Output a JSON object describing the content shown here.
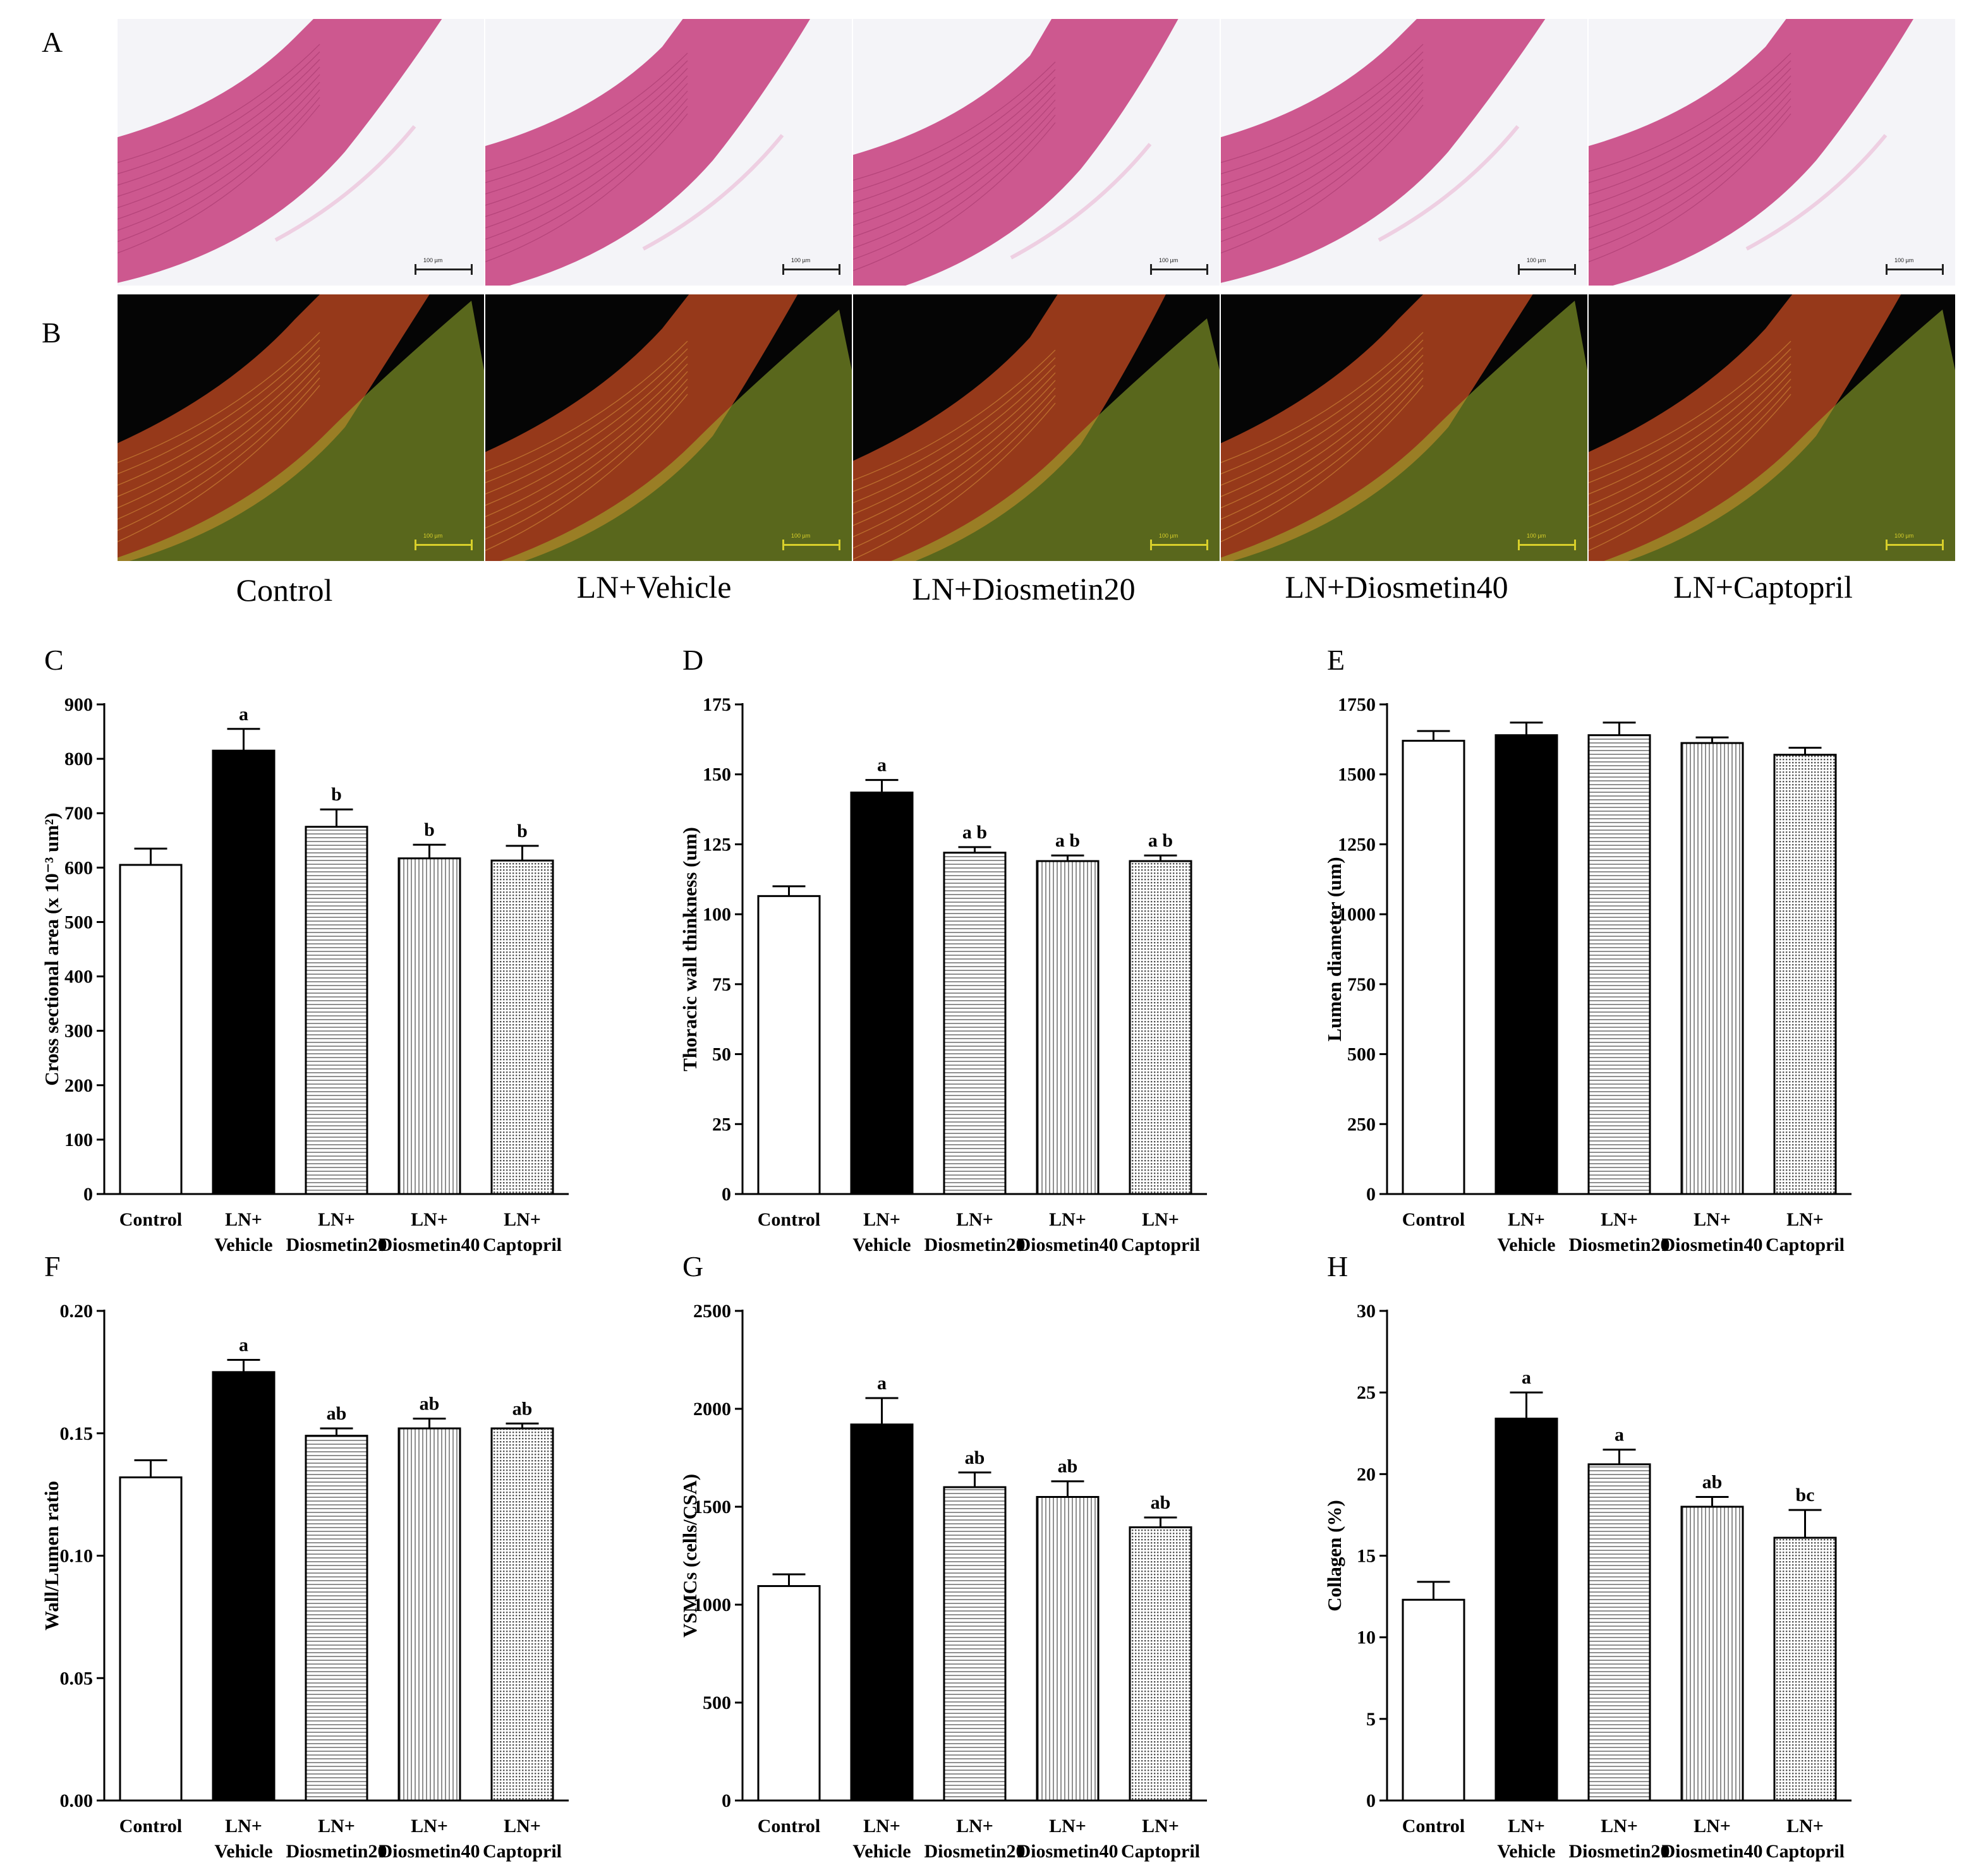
{
  "figure": {
    "panel_labels": [
      "A",
      "B"
    ],
    "groups": [
      "Control",
      "LN+Vehicle",
      "LN+Diosmetin20",
      "LN+Diosmetin40",
      "LN+Captopril"
    ],
    "he_scalebar_text": [
      "100 µm",
      "100 µm",
      "100 µm",
      "100 µm",
      "100 µm"
    ],
    "sr_scalebar_text": [
      "100 µm",
      "100 µm",
      "100 µm",
      "100 µm",
      "100 µm"
    ]
  },
  "colors": {
    "he_background": "#f4f4f8",
    "he_tissue": "#c94a86",
    "sr_background": "#050505",
    "sr_media": "#b0431f",
    "sr_adventitia": "#9fb830"
  },
  "chart_data": [
    {
      "panel": "C",
      "type": "bar",
      "categories": [
        "Control",
        "LN+\nVehicle",
        "LN+\nDiosmetin20",
        "LN+\nDiosmetin40",
        "LN+\nCaptopril"
      ],
      "values": [
        605,
        815,
        675,
        617,
        613
      ],
      "errors": [
        30,
        40,
        32,
        25,
        27
      ],
      "annotations": [
        "",
        "a",
        "b",
        "b",
        "b"
      ],
      "ylabel": "Cross sectional area (x 10⁻³ um²)",
      "ylim": [
        0,
        900
      ],
      "yticks": [
        0,
        100,
        200,
        300,
        400,
        500,
        600,
        700,
        800,
        900
      ],
      "patterns": [
        "white",
        "black",
        "hlines",
        "vlines",
        "dots"
      ]
    },
    {
      "panel": "D",
      "type": "bar",
      "categories": [
        "Control",
        "LN+\nVehicle",
        "LN+\nDiosmetin20",
        "LN+\nDiosmetin40",
        "LN+\nCaptopril"
      ],
      "values": [
        106.5,
        143.5,
        122,
        119,
        119
      ],
      "errors": [
        3.5,
        4.5,
        2,
        2,
        2
      ],
      "annotations": [
        "",
        "a",
        "a b",
        "a b",
        "a b"
      ],
      "ylabel": "Thoracic wall thinkness (um)",
      "ylim": [
        0,
        175
      ],
      "yticks": [
        0,
        25,
        50,
        75,
        100,
        125,
        150,
        175
      ],
      "patterns": [
        "white",
        "black",
        "hlines",
        "vlines",
        "dots"
      ]
    },
    {
      "panel": "E",
      "type": "bar",
      "categories": [
        "Control",
        "LN+\nVehicle",
        "LN+\nDiosmetin20",
        "LN+\nDiosmetin40",
        "LN+\nCaptopril"
      ],
      "values": [
        1620,
        1640,
        1640,
        1612,
        1570
      ],
      "errors": [
        35,
        45,
        45,
        20,
        25
      ],
      "annotations": [
        "",
        "",
        "",
        "",
        ""
      ],
      "ylabel": "Lumen diameter (um)",
      "ylim": [
        0,
        1750
      ],
      "yticks": [
        0,
        250,
        500,
        750,
        1000,
        1250,
        1500,
        1750
      ],
      "patterns": [
        "white",
        "black",
        "hlines",
        "vlines",
        "dots"
      ]
    },
    {
      "panel": "F",
      "type": "bar",
      "categories": [
        "Control",
        "LN+\nVehicle",
        "LN+\nDiosmetin20",
        "LN+\nDiosmetin40",
        "LN+\nCaptopril"
      ],
      "values": [
        0.132,
        0.175,
        0.149,
        0.152,
        0.152
      ],
      "errors": [
        0.007,
        0.005,
        0.003,
        0.004,
        0.002
      ],
      "annotations": [
        "",
        "a",
        "ab",
        "ab",
        "ab"
      ],
      "ylabel": "Wall/Lumen ratio",
      "ylim": [
        0,
        0.2
      ],
      "yticks": [
        "0.00",
        "0.05",
        "0.10",
        "0.15",
        "0.20"
      ],
      "patterns": [
        "white",
        "black",
        "hlines",
        "vlines",
        "dots"
      ]
    },
    {
      "panel": "G",
      "type": "bar",
      "categories": [
        "Control",
        "LN+\nVehicle",
        "LN+\nDiosmetin20",
        "LN+\nDiosmetin40",
        "LN+\nCaptopril"
      ],
      "values": [
        1095,
        1920,
        1600,
        1550,
        1395
      ],
      "errors": [
        60,
        135,
        75,
        80,
        50
      ],
      "annotations": [
        "",
        "a",
        "ab",
        "ab",
        "ab"
      ],
      "ylabel": "VSMCs (cells/CSA)",
      "ylim": [
        0,
        2500
      ],
      "yticks": [
        0,
        500,
        1000,
        1500,
        2000,
        2500
      ],
      "patterns": [
        "white",
        "black",
        "hlines",
        "vlines",
        "dots"
      ]
    },
    {
      "panel": "H",
      "type": "bar",
      "categories": [
        "Control",
        "LN+\nVehicle",
        "LN+\nDiosmetin20",
        "LN+\nDiosmetin40",
        "LN+\nCaptopril"
      ],
      "values": [
        12.3,
        23.4,
        20.6,
        18.0,
        16.1
      ],
      "errors": [
        1.1,
        1.6,
        0.9,
        0.6,
        1.7
      ],
      "annotations": [
        "",
        "a",
        "a",
        "ab",
        "bc"
      ],
      "ylabel": "Collagen (%)",
      "ylim": [
        0,
        30
      ],
      "yticks": [
        0,
        5,
        10,
        15,
        20,
        25,
        30
      ],
      "patterns": [
        "white",
        "black",
        "hlines",
        "vlines",
        "dots"
      ]
    }
  ]
}
